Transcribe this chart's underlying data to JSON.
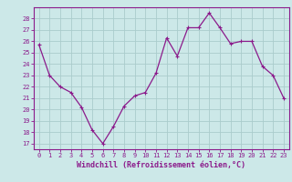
{
  "x": [
    0,
    1,
    2,
    3,
    4,
    5,
    6,
    7,
    8,
    9,
    10,
    11,
    12,
    13,
    14,
    15,
    16,
    17,
    18,
    19,
    20,
    21,
    22,
    23
  ],
  "y": [
    25.7,
    23.0,
    22.0,
    21.5,
    20.2,
    18.2,
    17.0,
    18.5,
    20.3,
    21.2,
    21.5,
    23.2,
    26.3,
    24.7,
    27.2,
    27.2,
    28.5,
    27.2,
    25.8,
    26.0,
    26.0,
    23.8,
    23.0,
    21.0
  ],
  "line_color": "#8b1a8b",
  "marker": "x",
  "marker_size": 3,
  "background_color": "#cce8e8",
  "grid_color": "#aacccc",
  "xlabel": "Windchill (Refroidissement éolien,°C)",
  "xlabel_color": "#8b1a8b",
  "ylabel_ticks": [
    17,
    18,
    19,
    20,
    21,
    22,
    23,
    24,
    25,
    26,
    27,
    28
  ],
  "ylim": [
    16.5,
    29.0
  ],
  "xlim": [
    -0.5,
    23.5
  ],
  "xtick_labels": [
    "0",
    "1",
    "2",
    "3",
    "4",
    "5",
    "6",
    "7",
    "8",
    "9",
    "10",
    "11",
    "12",
    "13",
    "14",
    "15",
    "16",
    "17",
    "18",
    "19",
    "20",
    "21",
    "22",
    "23"
  ],
  "tick_color": "#8b1a8b",
  "spine_color": "#8b1a8b",
  "tick_fontsize": 5.0,
  "xlabel_fontsize": 6.0
}
